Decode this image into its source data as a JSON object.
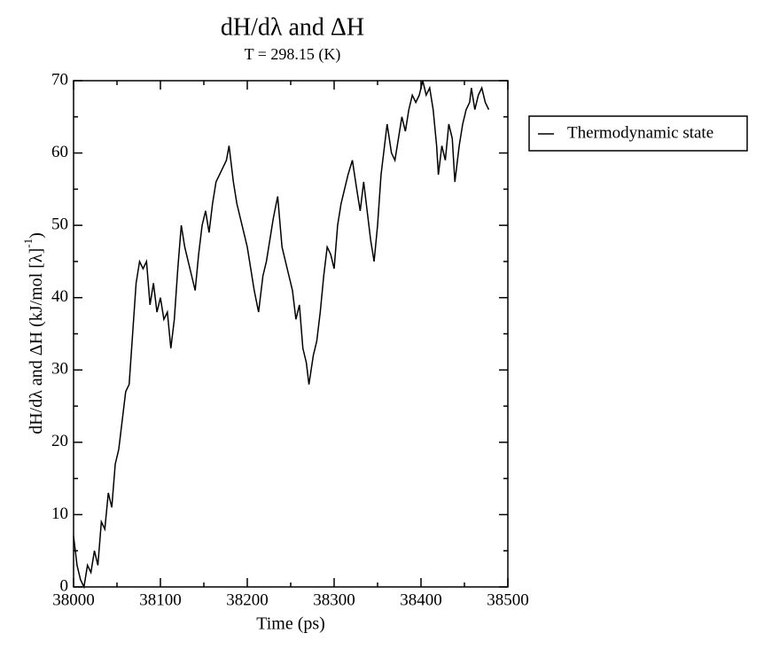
{
  "chart_data": {
    "type": "line",
    "title": "dH/dλ and ΔH",
    "subtitle": "T = 298.15 (K)",
    "xlabel": "Time (ps)",
    "ylabel": [
      "dH/dλ and ΔH (kJ/mol [λ]",
      "-1",
      ")"
    ],
    "xlim": [
      38000,
      38500
    ],
    "ylim": [
      0,
      70
    ],
    "xticks": [
      38000,
      38100,
      38200,
      38300,
      38400,
      38500
    ],
    "yticks": [
      0,
      10,
      20,
      30,
      40,
      50,
      60,
      70
    ],
    "xminorticks": [
      38050,
      38150,
      38250,
      38350,
      38450
    ],
    "yminorticks": [
      5,
      15,
      25,
      35,
      45,
      55,
      65
    ],
    "legend": "right",
    "series": [
      {
        "name": "Thermodynamic state",
        "color": "#000000",
        "x": [
          38000,
          38004,
          38008,
          38012,
          38016,
          38020,
          38024,
          38028,
          38032,
          38036,
          38040,
          38044,
          38048,
          38052,
          38056,
          38060,
          38064,
          38068,
          38072,
          38076,
          38080,
          38084,
          38088,
          38092,
          38096,
          38100,
          38104,
          38108,
          38112,
          38116,
          38120,
          38124,
          38128,
          38132,
          38136,
          38140,
          38144,
          38148,
          38152,
          38156,
          38160,
          38164,
          38168,
          38172,
          38176,
          38179,
          38184,
          38188,
          38192,
          38196,
          38200,
          38204,
          38208,
          38213,
          38218,
          38222,
          38226,
          38230,
          38235,
          38240,
          38244,
          38248,
          38252,
          38256,
          38260,
          38264,
          38268,
          38271,
          38276,
          38280,
          38284,
          38288,
          38292,
          38296,
          38300,
          38304,
          38308,
          38312,
          38316,
          38321,
          38326,
          38330,
          38334,
          38338,
          38342,
          38346,
          38350,
          38354,
          38358,
          38361,
          38366,
          38370,
          38374,
          38378,
          38382,
          38386,
          38390,
          38394,
          38398,
          38402,
          38406,
          38410,
          38414,
          38418,
          38420,
          38424,
          38428,
          38432,
          38436,
          38439,
          38444,
          38448,
          38452,
          38456,
          38458,
          38462,
          38466,
          38470,
          38474,
          38478
        ],
        "values": [
          7,
          3,
          1,
          0,
          3,
          2,
          5,
          3,
          9,
          8,
          13,
          11,
          17,
          19,
          23,
          27,
          28,
          35,
          42,
          45,
          44,
          45,
          39,
          42,
          38,
          40,
          37,
          38,
          33,
          37,
          44,
          50,
          47,
          45,
          43,
          41,
          46,
          50,
          52,
          49,
          53,
          56,
          57,
          58,
          59,
          61,
          56,
          53,
          51,
          49,
          47,
          44,
          41,
          38,
          43,
          45,
          48,
          51,
          54,
          47,
          45,
          43,
          41,
          37,
          39,
          33,
          31,
          28,
          32,
          34,
          38,
          43,
          47,
          46,
          44,
          50,
          53,
          55,
          57,
          59,
          55,
          52,
          56,
          52,
          48,
          45,
          50,
          57,
          61,
          64,
          60,
          59,
          62,
          65,
          63,
          66,
          68,
          67,
          68,
          70,
          68,
          69,
          66,
          61,
          57,
          61,
          59,
          64,
          62,
          56,
          61,
          64,
          66,
          67,
          69,
          66,
          68,
          69,
          67,
          66
        ]
      }
    ]
  }
}
